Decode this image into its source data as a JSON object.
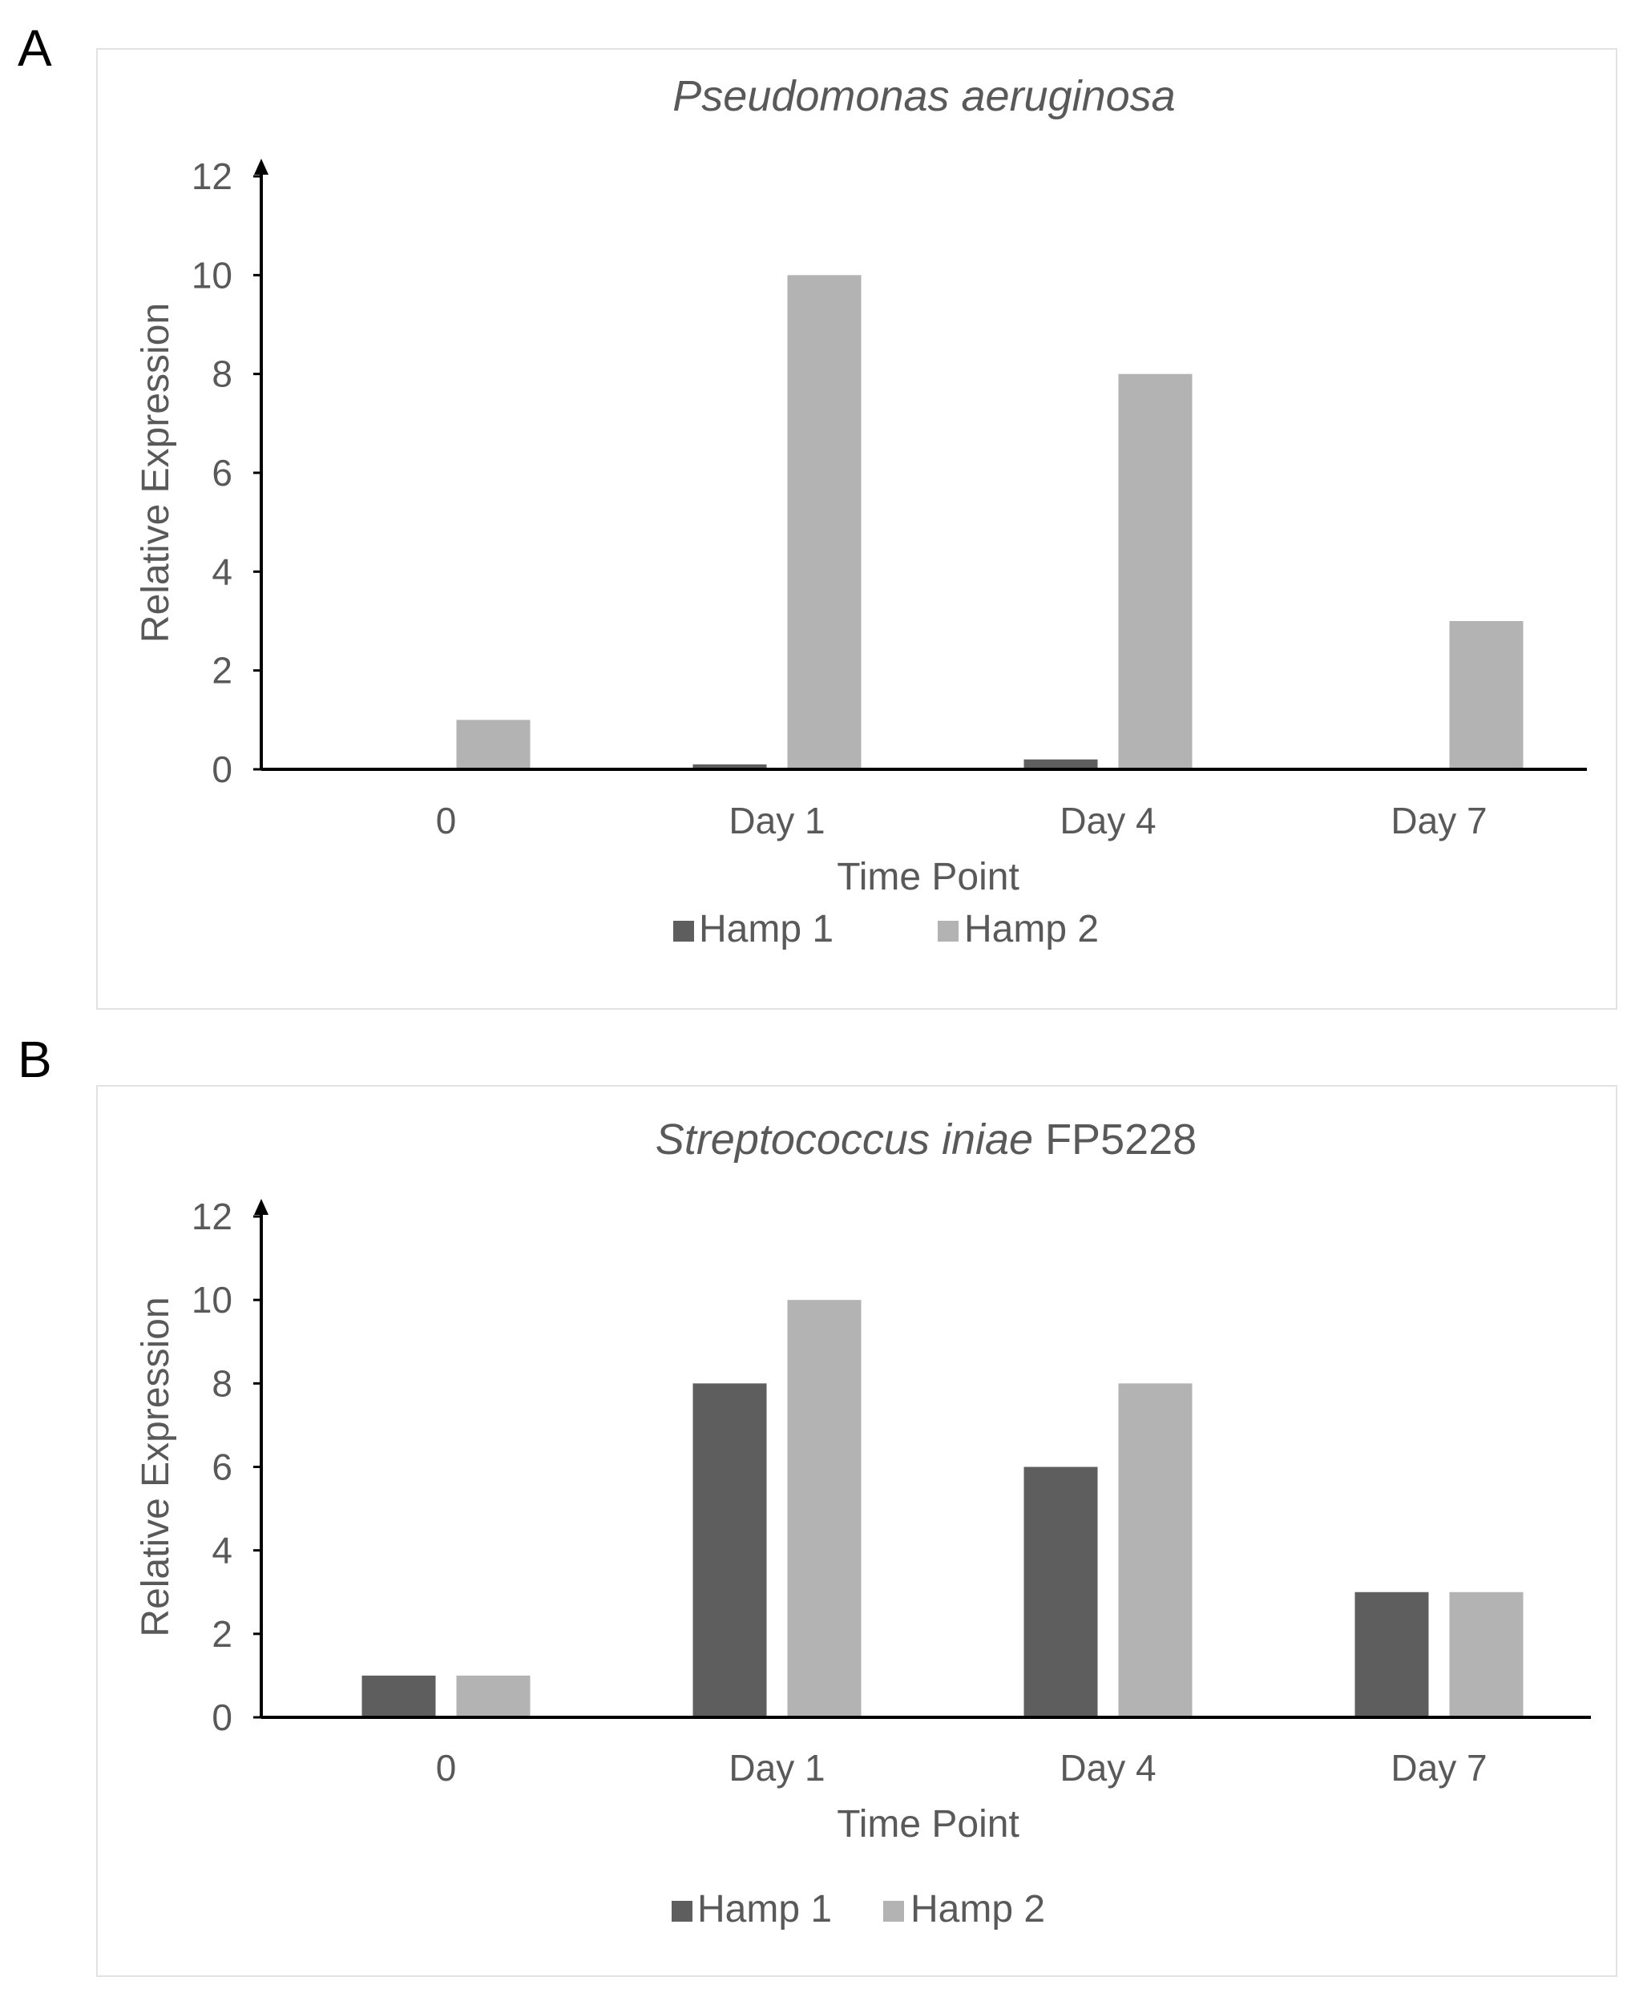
{
  "panels": [
    {
      "letter": "A",
      "chart_data": {
        "type": "bar",
        "title": "Pseudomonas aeruginosa",
        "title_parts": [
          {
            "text": "Pseudomonas aeruginosa",
            "italic": true
          }
        ],
        "xlabel": "Time Point",
        "ylabel": "Relative Expression",
        "categories": [
          "0",
          "Day 1",
          "Day 4",
          "Day 7"
        ],
        "ylim": [
          0,
          12
        ],
        "yticks": [
          0,
          2,
          4,
          6,
          8,
          10,
          12
        ],
        "grid": false,
        "legend": "bottom",
        "series": [
          {
            "name": "Hamp 1",
            "color": "#5e5e5e",
            "values": [
              0,
              0.1,
              0.2,
              0
            ]
          },
          {
            "name": "Hamp 2",
            "color": "#b3b3b3",
            "values": [
              1,
              10,
              8,
              3
            ]
          }
        ]
      }
    },
    {
      "letter": "B",
      "chart_data": {
        "type": "bar",
        "title": "Streptococcus iniae FP5228",
        "title_parts": [
          {
            "text": "Streptococcus iniae",
            "italic": true
          },
          {
            "text": " FP5228",
            "italic": false
          }
        ],
        "xlabel": "Time Point",
        "ylabel": "Relative Expression",
        "categories": [
          "0",
          "Day 1",
          "Day 4",
          "Day 7"
        ],
        "ylim": [
          0,
          12
        ],
        "yticks": [
          0,
          2,
          4,
          6,
          8,
          10,
          12
        ],
        "grid": false,
        "legend": "bottom",
        "series": [
          {
            "name": "Hamp 1",
            "color": "#5e5e5e",
            "values": [
              1,
              8,
              6,
              3
            ]
          },
          {
            "name": "Hamp 2",
            "color": "#b3b3b3",
            "values": [
              1,
              10,
              8,
              3
            ]
          }
        ]
      }
    }
  ]
}
